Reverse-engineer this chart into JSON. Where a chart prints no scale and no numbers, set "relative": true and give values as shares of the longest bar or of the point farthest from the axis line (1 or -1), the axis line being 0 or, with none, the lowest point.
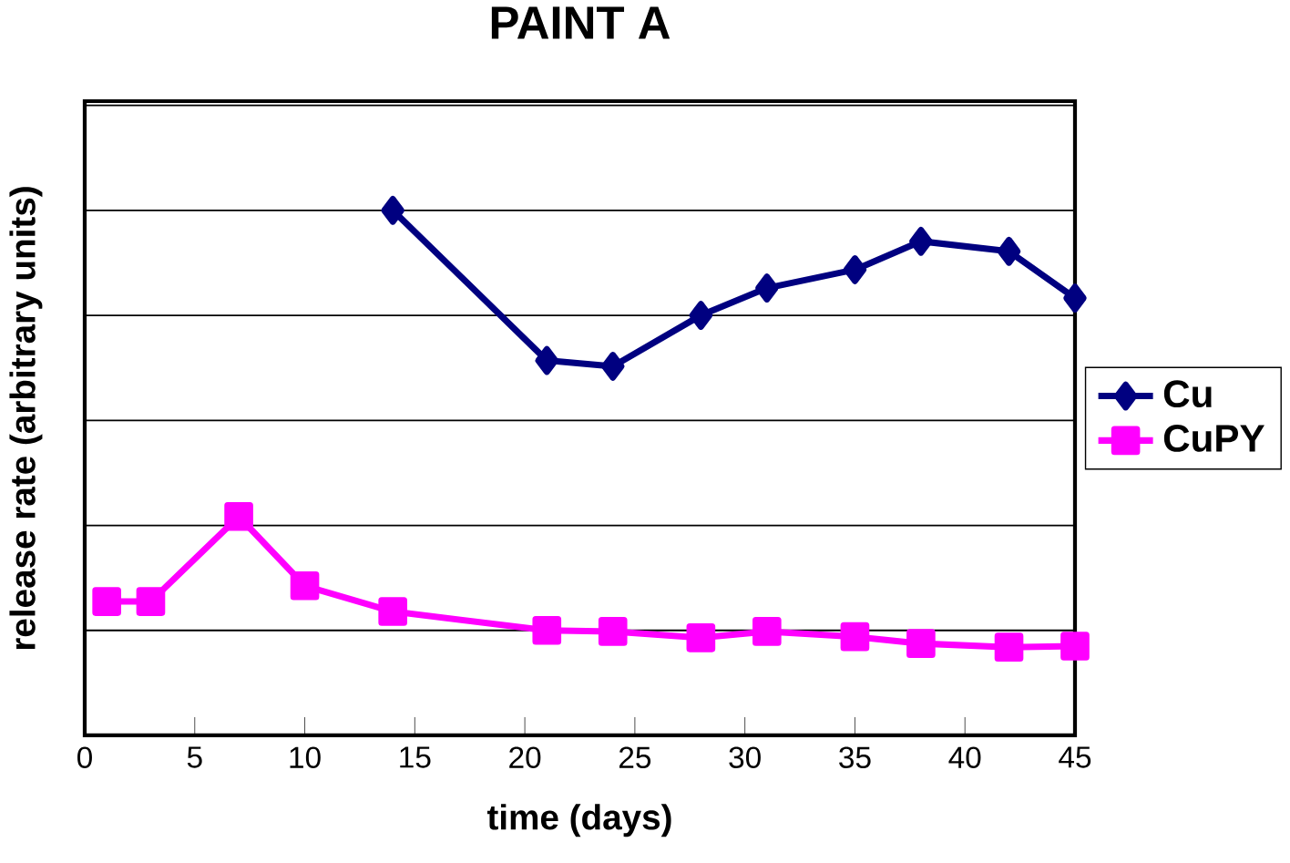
{
  "chart_data": {
    "type": "line",
    "title": "PAINT A",
    "xlabel": "time (days)",
    "ylabel": "release rate (arbitrary units)",
    "relative": true,
    "xlim": [
      0,
      45
    ],
    "xticks": [
      0,
      5,
      10,
      15,
      20,
      25,
      30,
      35,
      40,
      45
    ],
    "grid": "y",
    "legend": "right",
    "line_style": "solid",
    "series": [
      {
        "name": "Cu",
        "color": "#000080",
        "marker": "diamond",
        "x": [
          14,
          21,
          24,
          28,
          31,
          35,
          38,
          42,
          45
        ],
        "values": [
          1.0,
          0.714,
          0.703,
          0.8,
          0.852,
          0.887,
          0.941,
          0.922,
          0.833
        ]
      },
      {
        "name": "CuPY",
        "color": "#ff00ff",
        "marker": "square",
        "x": [
          1,
          3,
          7,
          10,
          14,
          21,
          24,
          28,
          31,
          35,
          38,
          42,
          45
        ],
        "values": [
          0.255,
          0.255,
          0.417,
          0.285,
          0.236,
          0.2,
          0.198,
          0.186,
          0.198,
          0.188,
          0.175,
          0.168,
          0.17
        ]
      }
    ]
  }
}
